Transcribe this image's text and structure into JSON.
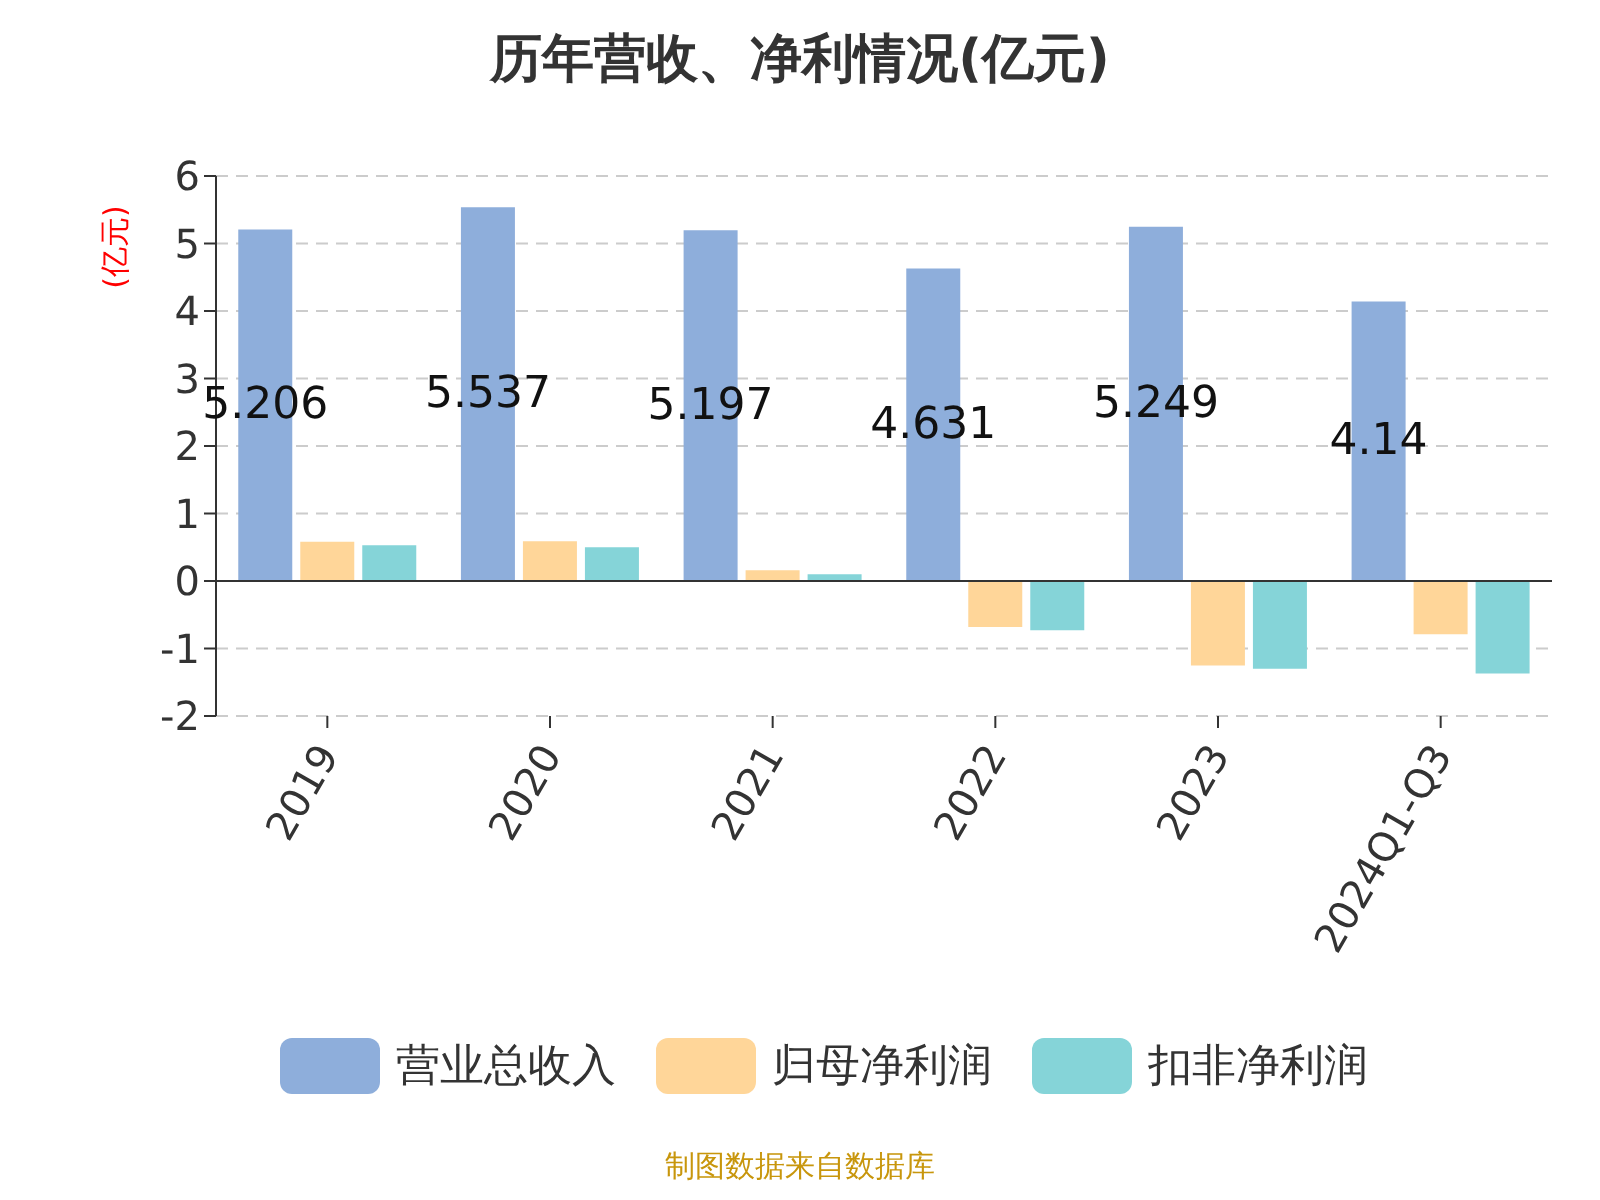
{
  "chart_data": {
    "type": "bar",
    "title": "历年营收、净利情况(亿元)",
    "ylabel": "(亿元)",
    "categories": [
      "2019",
      "2020",
      "2021",
      "2022",
      "2023",
      "2024Q1-Q3"
    ],
    "series": [
      {
        "name": "营业总收入",
        "color": "#8eaedb",
        "values": [
          5.206,
          5.537,
          5.197,
          4.631,
          5.249,
          4.14
        ],
        "value_labels": [
          "5.206",
          "5.537",
          "5.197",
          "4.631",
          "5.249",
          "4.14"
        ]
      },
      {
        "name": "归母净利润",
        "color": "#ffd699",
        "values": [
          0.58,
          0.59,
          0.16,
          -0.68,
          -1.25,
          -0.79
        ]
      },
      {
        "name": "扣非净利润",
        "color": "#85d4d8",
        "values": [
          0.53,
          0.5,
          0.1,
          -0.73,
          -1.3,
          -1.37
        ]
      }
    ],
    "ylim": [
      -2,
      6
    ],
    "yticks": [
      -2,
      -1,
      0,
      1,
      2,
      3,
      4,
      5,
      6
    ],
    "grid": "y",
    "legend": "bottom",
    "annotations": [
      "制图数据来自数据库"
    ]
  }
}
